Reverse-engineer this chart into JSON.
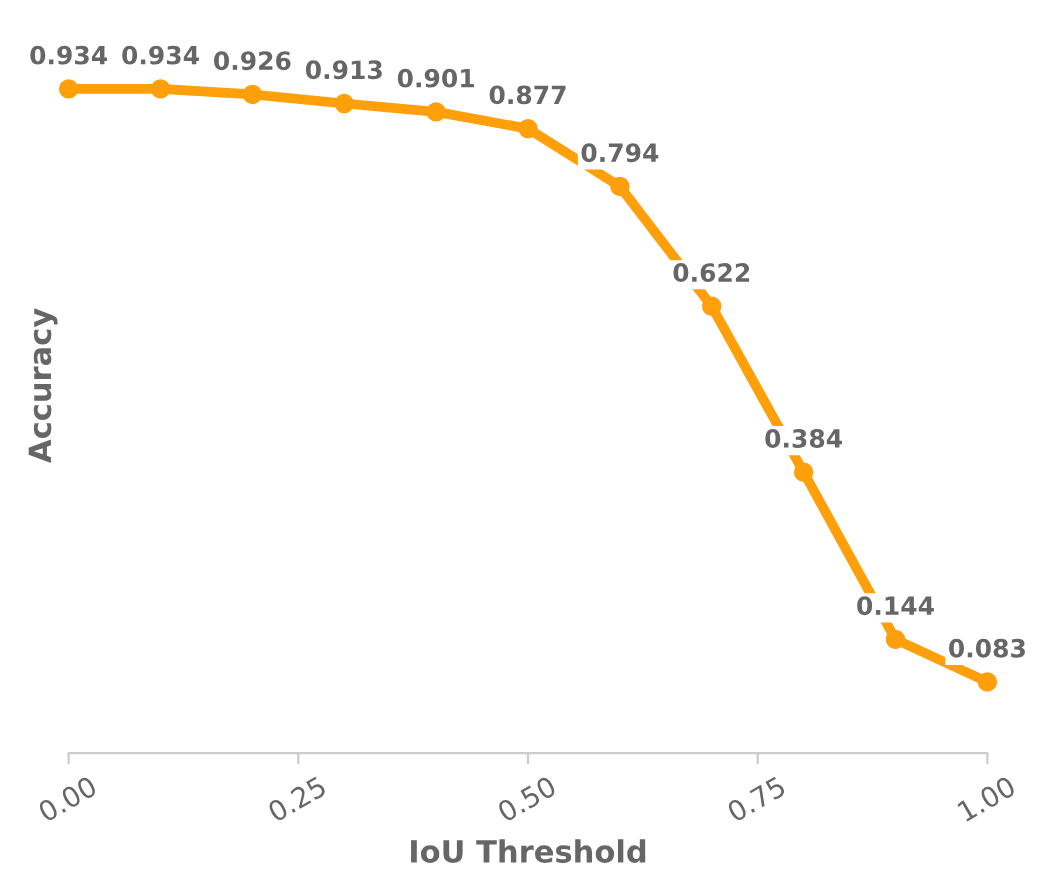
{
  "chart_data": {
    "type": "line",
    "xlabel": "IoU Threshold",
    "ylabel": "Accuracy",
    "x": [
      0.0,
      0.1,
      0.2,
      0.3,
      0.4,
      0.5,
      0.6,
      0.7,
      0.8,
      0.9,
      1.0
    ],
    "series": [
      {
        "color": "#ff9f0a",
        "values": [
          0.934,
          0.934,
          0.926,
          0.913,
          0.901,
          0.877,
          0.794,
          0.622,
          0.384,
          0.144,
          0.083
        ]
      }
    ],
    "xlim": [
      0,
      1
    ],
    "xticks": [
      {
        "value": 0,
        "label": "0.00"
      },
      {
        "value": 0.25,
        "label": "0.25"
      },
      {
        "value": 0.5,
        "label": "0.50"
      },
      {
        "value": 0.75,
        "label": "0.75"
      },
      {
        "value": 1,
        "label": "1.00"
      }
    ],
    "tick_labels": "x",
    "data_labels": true,
    "marker": "circle",
    "line_style": "solid",
    "grid": false,
    "legend": false
  }
}
